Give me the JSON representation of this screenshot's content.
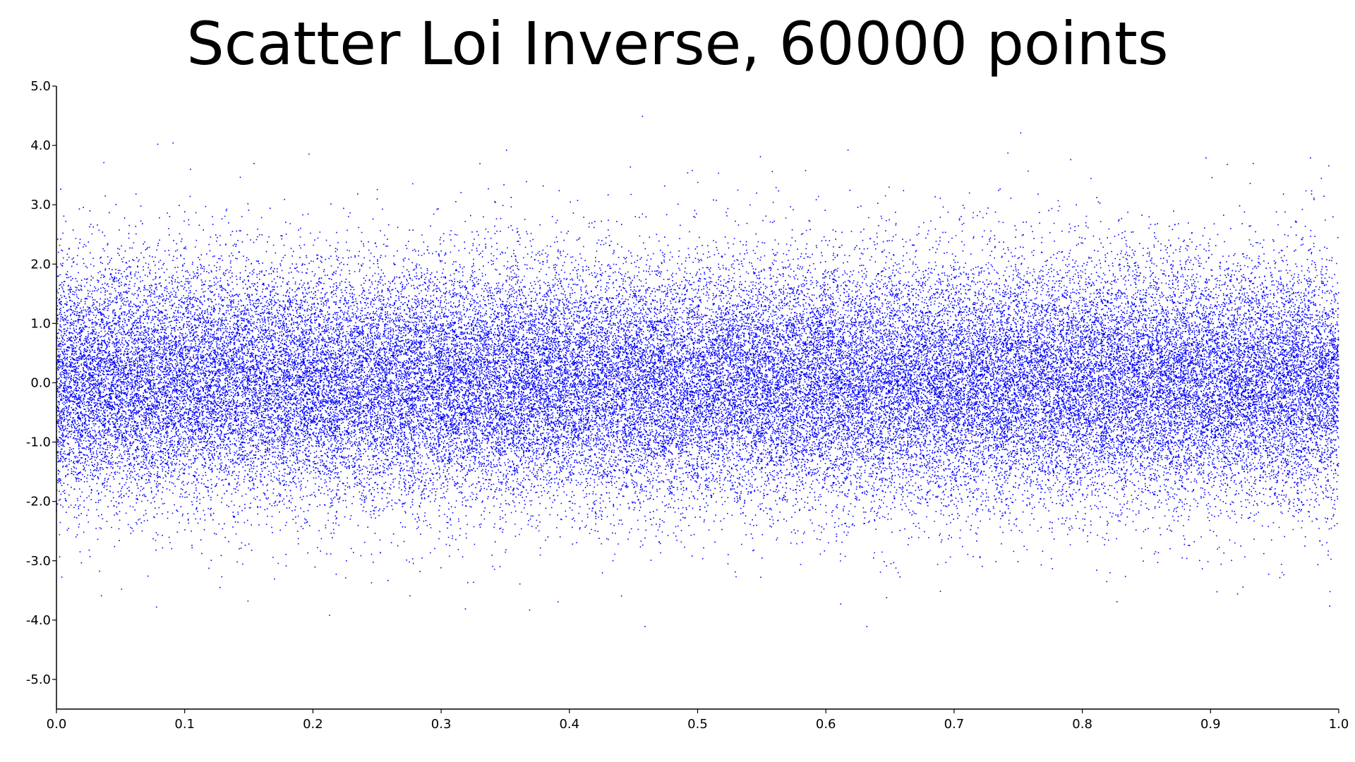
{
  "page": {
    "title": "Scatter Loi Inverse, 60000 points"
  },
  "chart_data": {
    "type": "scatter",
    "title": "Scatter Loi Inverse, 60000 points",
    "xlabel": "",
    "ylabel": "",
    "xlim": [
      0.0,
      1.0
    ],
    "ylim": [
      -5.5,
      5.0
    ],
    "x_ticks": [
      "0.0",
      "0.1",
      "0.2",
      "0.3",
      "0.4",
      "0.5",
      "0.6",
      "0.7",
      "0.8",
      "0.9",
      "1.0"
    ],
    "y_ticks": [
      "5.0",
      "4.0",
      "3.0",
      "2.0",
      "1.0",
      "0.0",
      "-1.0",
      "-2.0",
      "-3.0",
      "-4.0",
      "-5.0"
    ],
    "grid": false,
    "legend": "none",
    "series": [
      {
        "color": "#0000ff",
        "marker": "dot",
        "point_count": 60000,
        "distribution": "standard normal (inverse CDF sampling), x uniform on [0,1], y mean 0.0, sd 1.0",
        "sample_points": [
          [
            0.457,
            4.49
          ],
          [
            0.752,
            4.21
          ],
          [
            0.079,
            4.02
          ],
          [
            0.091,
            4.04
          ],
          [
            0.037,
            3.71
          ],
          [
            0.351,
            3.92
          ],
          [
            0.549,
            3.81
          ],
          [
            0.742,
            3.87
          ],
          [
            0.791,
            3.76
          ],
          [
            0.978,
            3.79
          ],
          [
            0.078,
            -3.78
          ],
          [
            0.213,
            -3.92
          ],
          [
            0.459,
            -4.11
          ],
          [
            0.632,
            -4.11
          ],
          [
            0.827,
            -3.69
          ],
          [
            0.921,
            -3.56
          ]
        ]
      }
    ]
  }
}
